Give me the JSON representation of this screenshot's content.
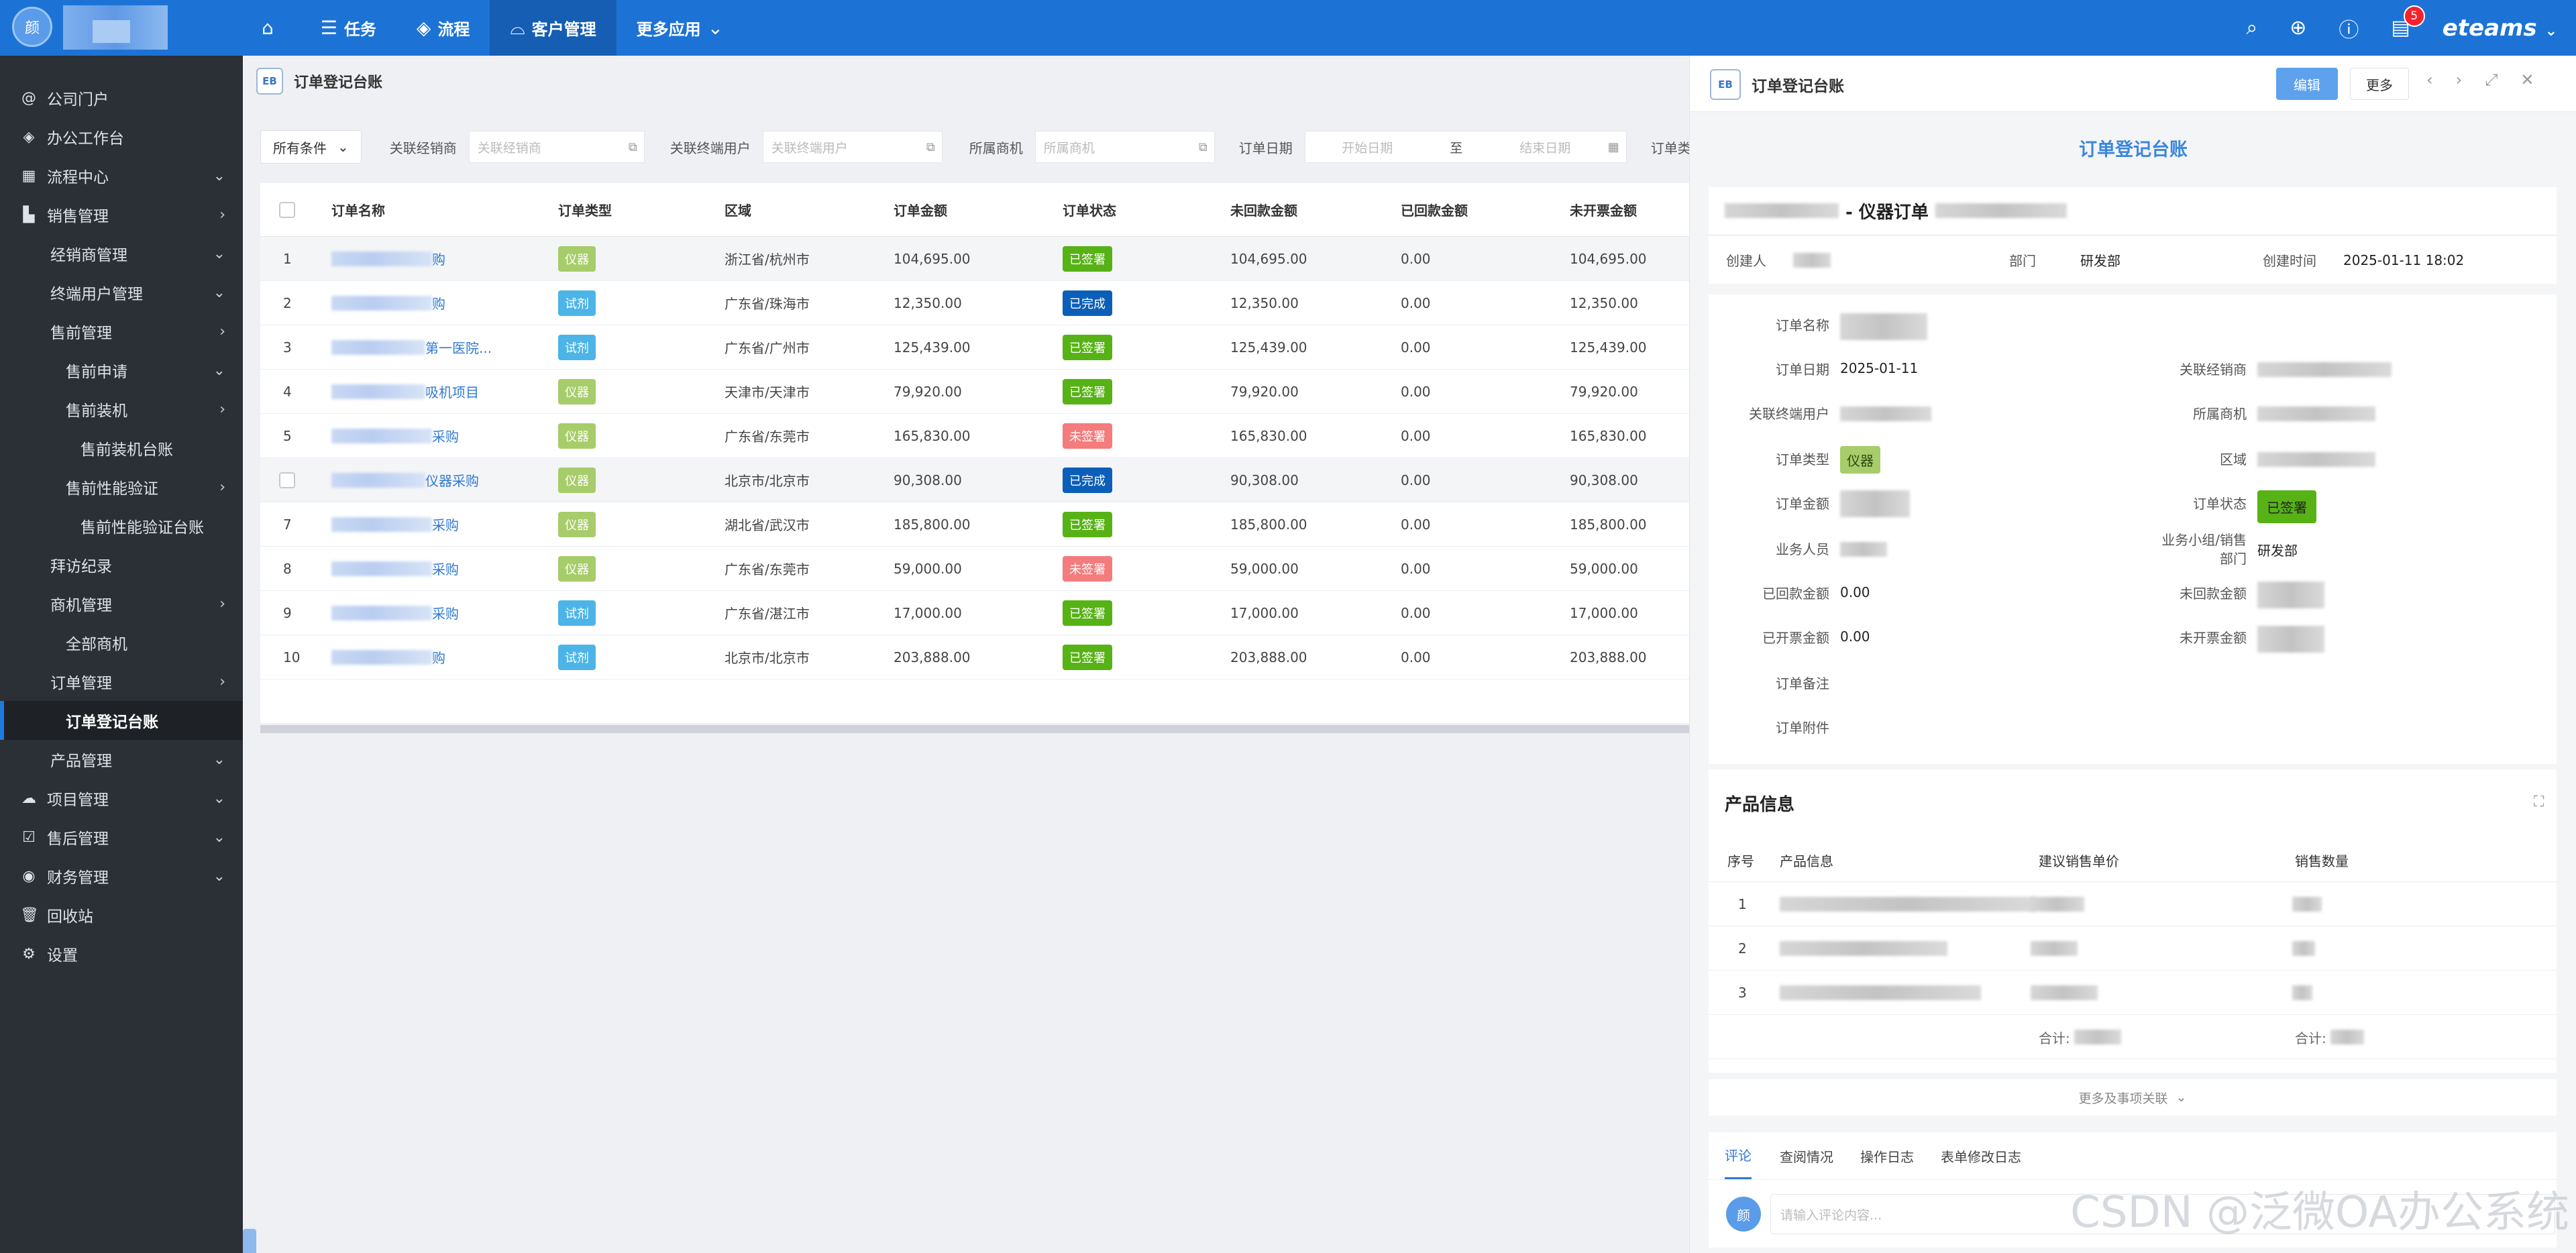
{
  "topbar": {
    "avatar_char": "颜",
    "nav": [
      {
        "label": "",
        "icon": "home-icon",
        "glyph": "⌂"
      },
      {
        "label": "任务",
        "icon": "list-icon",
        "glyph": "☰"
      },
      {
        "label": "流程",
        "icon": "layers-icon",
        "glyph": "◈"
      },
      {
        "label": "客户管理",
        "icon": "inbox-icon",
        "glyph": "⌓"
      },
      {
        "label": "更多应用",
        "icon": "chevron-down-icon",
        "glyph": "⌄"
      }
    ],
    "badge_count": "5",
    "logo": "eteams"
  },
  "sidebar": {
    "items": [
      {
        "label": "公司门户",
        "level": 1,
        "glyph": "@",
        "arrow": ""
      },
      {
        "label": "办公工作台",
        "level": 1,
        "glyph": "◈",
        "arrow": ""
      },
      {
        "label": "流程中心",
        "level": 1,
        "glyph": "▦",
        "arrow": "⌄"
      },
      {
        "label": "销售管理",
        "level": 1,
        "glyph": "▙",
        "arrow": "›"
      },
      {
        "label": "经销商管理",
        "level": 2,
        "glyph": "",
        "arrow": "⌄"
      },
      {
        "label": "终端用户管理",
        "level": 2,
        "glyph": "",
        "arrow": "⌄"
      },
      {
        "label": "售前管理",
        "level": 2,
        "glyph": "",
        "arrow": "›"
      },
      {
        "label": "售前申请",
        "level": 3,
        "glyph": "",
        "arrow": "⌄"
      },
      {
        "label": "售前装机",
        "level": 3,
        "glyph": "",
        "arrow": "›"
      },
      {
        "label": "售前装机台账",
        "level": 4,
        "glyph": "",
        "arrow": ""
      },
      {
        "label": "售前性能验证",
        "level": 3,
        "glyph": "",
        "arrow": "›"
      },
      {
        "label": "售前性能验证台账",
        "level": 4,
        "glyph": "",
        "arrow": ""
      },
      {
        "label": "拜访纪录",
        "level": 2,
        "glyph": "",
        "arrow": ""
      },
      {
        "label": "商机管理",
        "level": 2,
        "glyph": "",
        "arrow": "›"
      },
      {
        "label": "全部商机",
        "level": 3,
        "glyph": "",
        "arrow": ""
      },
      {
        "label": "订单管理",
        "level": 2,
        "glyph": "",
        "arrow": "›"
      },
      {
        "label": "订单登记台账",
        "level": 3,
        "glyph": "",
        "arrow": "",
        "active": true
      },
      {
        "label": "产品管理",
        "level": 2,
        "glyph": "",
        "arrow": "⌄"
      },
      {
        "label": "项目管理",
        "level": 1,
        "glyph": "☁",
        "arrow": "⌄"
      },
      {
        "label": "售后管理",
        "level": 1,
        "glyph": "☑",
        "arrow": "⌄"
      },
      {
        "label": "财务管理",
        "level": 1,
        "glyph": "◉",
        "arrow": "⌄"
      },
      {
        "label": "回收站",
        "level": 1,
        "glyph": "🗑",
        "arrow": ""
      },
      {
        "label": "设置",
        "level": 1,
        "glyph": "⚙",
        "arrow": ""
      }
    ]
  },
  "main": {
    "eb": "EB",
    "title": "订单登记台账",
    "filters": {
      "all_conditions": "所有条件",
      "dealer_label": "关联经销商",
      "dealer_placeholder": "关联经销商",
      "enduser_label": "关联终端用户",
      "enduser_placeholder": "关联终端用户",
      "opportunity_label": "所属商机",
      "opportunity_placeholder": "所属商机",
      "date_label": "订单日期",
      "start_placeholder": "开始日期",
      "to": "至",
      "end_placeholder": "结束日期",
      "type_label": "订单类型"
    },
    "columns": [
      "订单名称",
      "订单类型",
      "区域",
      "订单金额",
      "订单状态",
      "未回款金额",
      "已回款金额",
      "未开票金额"
    ],
    "rows": [
      {
        "no": "1",
        "name_suffix": "购",
        "type": "仪器",
        "region": "浙江省/杭州市",
        "amount": "104,695.00",
        "status": "已签署",
        "unpaid": "104,695.00",
        "paid": "0.00",
        "uninvoiced": "104,695.00"
      },
      {
        "no": "2",
        "name_suffix": "购",
        "type": "试剂",
        "region": "广东省/珠海市",
        "amount": "12,350.00",
        "status": "已完成",
        "unpaid": "12,350.00",
        "paid": "0.00",
        "uninvoiced": "12,350.00"
      },
      {
        "no": "3",
        "name_suffix": "第一医院...",
        "type": "试剂",
        "region": "广东省/广州市",
        "amount": "125,439.00",
        "status": "已签署",
        "unpaid": "125,439.00",
        "paid": "0.00",
        "uninvoiced": "125,439.00"
      },
      {
        "no": "4",
        "name_suffix": "吸机项目",
        "type": "仪器",
        "region": "天津市/天津市",
        "amount": "79,920.00",
        "status": "已签署",
        "unpaid": "79,920.00",
        "paid": "0.00",
        "uninvoiced": "79,920.00"
      },
      {
        "no": "5",
        "name_suffix": "采购",
        "type": "仪器",
        "region": "广东省/东莞市",
        "amount": "165,830.00",
        "status": "未签署",
        "unpaid": "165,830.00",
        "paid": "0.00",
        "uninvoiced": "165,830.00"
      },
      {
        "no": "",
        "name_suffix": "仪器采购",
        "type": "仪器",
        "region": "北京市/北京市",
        "amount": "90,308.00",
        "status": "已完成",
        "unpaid": "90,308.00",
        "paid": "0.00",
        "uninvoiced": "90,308.00"
      },
      {
        "no": "7",
        "name_suffix": "采购",
        "type": "仪器",
        "region": "湖北省/武汉市",
        "amount": "185,800.00",
        "status": "已签署",
        "unpaid": "185,800.00",
        "paid": "0.00",
        "uninvoiced": "185,800.00"
      },
      {
        "no": "8",
        "name_suffix": "采购",
        "type": "仪器",
        "region": "广东省/东莞市",
        "amount": "59,000.00",
        "status": "未签署",
        "unpaid": "59,000.00",
        "paid": "0.00",
        "uninvoiced": "59,000.00"
      },
      {
        "no": "9",
        "name_suffix": "采购",
        "type": "试剂",
        "region": "广东省/湛江市",
        "amount": "17,000.00",
        "status": "已签署",
        "unpaid": "17,000.00",
        "paid": "0.00",
        "uninvoiced": "17,000.00"
      },
      {
        "no": "10",
        "name_suffix": "购",
        "type": "试剂",
        "region": "北京市/北京市",
        "amount": "203,888.00",
        "status": "已签署",
        "unpaid": "203,888.00",
        "paid": "0.00",
        "uninvoiced": "203,888.00"
      }
    ]
  },
  "colors": {
    "type_instrument": "#a7cc6a",
    "type_reagent": "#4cb4e7",
    "status_signed": "#57b216",
    "status_done": "#0b5fb8",
    "status_unsigned": "#f47c7c"
  },
  "panel": {
    "eb": "EB",
    "title": "订单登记台账",
    "edit": "编辑",
    "more": "更多",
    "form_title": "订单登记台账",
    "subject_mid": "- 仪器订单",
    "creator_label": "创建人",
    "dept_label": "部门",
    "dept_value": "研发部",
    "created_label": "创建时间",
    "created_value": "2025-01-11 18:02",
    "fields": {
      "order_name": "订单名称",
      "order_date": "订单日期",
      "order_date_value": "2025-01-11",
      "dealer": "关联经销商",
      "enduser": "关联终端用户",
      "opportunity": "所属商机",
      "order_type": "订单类型",
      "order_type_value": "仪器",
      "region": "区域",
      "amount": "订单金额",
      "status": "订单状态",
      "status_value": "已签署",
      "salesperson": "业务人员",
      "team_line1": "业务小组/销售",
      "team_line2": "部门",
      "team_value": "研发部",
      "paid": "已回款金额",
      "paid_value": "0.00",
      "unpaid": "未回款金额",
      "invoiced": "已开票金额",
      "invoiced_value": "0.00",
      "uninvoiced": "未开票金额",
      "remark": "订单备注",
      "attachment": "订单附件"
    },
    "product": {
      "heading": "产品信息",
      "columns": [
        "序号",
        "产品信息",
        "建议销售单价",
        "销售数量"
      ],
      "rows": [
        "1",
        "2",
        "3"
      ],
      "total": "合计:"
    },
    "more_relations": "更多及事项关联",
    "tabs": [
      "评论",
      "查阅情况",
      "操作日志",
      "表单修改日志"
    ],
    "comment_placeholder": "请输入评论内容...",
    "avatar_char": "颜"
  },
  "watermark": "CSDN @泛微OA办公系统"
}
